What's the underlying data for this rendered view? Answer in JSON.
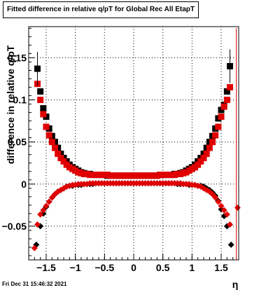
{
  "title": "Fitted difference in relative q/pT for Global Rec All EtapT",
  "footer": "Fri Dec 31 15:46:32 2021",
  "chart_data": {
    "type": "scatter",
    "title": "Fitted difference in relative q/pT for Global Rec All EtapT",
    "xlabel": "η",
    "ylabel": "difference in relative q/pT",
    "xlim": [
      -1.8,
      1.8
    ],
    "ylim": [
      -0.09,
      0.187
    ],
    "grid": true,
    "x_ticks": [
      -1.5,
      -1,
      -0.5,
      0,
      0.5,
      1,
      1.5
    ],
    "x_tick_labels": [
      "−1.5",
      "−1",
      "−0.5",
      "0",
      "0.5",
      "1",
      "1.5"
    ],
    "y_ticks": [
      -0.05,
      0,
      0.05,
      0.1,
      0.15
    ],
    "y_tick_labels": [
      "−0.05",
      "0",
      "0.05",
      "0.1",
      "0.15"
    ],
    "series": [
      {
        "marker": "square",
        "color": "#000000",
        "x": [
          -1.65,
          -1.6,
          -1.55,
          -1.5,
          -1.45,
          -1.4,
          -1.35,
          -1.3,
          -1.25,
          -1.2,
          -1.15,
          -1.1,
          -1.05,
          -1.0,
          -0.95,
          -0.9,
          -0.85,
          -0.8,
          -0.75,
          -0.7,
          -0.65,
          -0.6,
          -0.55,
          -0.5,
          -0.45,
          -0.4,
          -0.35,
          -0.3,
          -0.25,
          -0.2,
          -0.15,
          -0.1,
          -0.05,
          0.0,
          0.05,
          0.1,
          0.15,
          0.2,
          0.25,
          0.3,
          0.35,
          0.4,
          0.45,
          0.5,
          0.55,
          0.6,
          0.65,
          0.7,
          0.75,
          0.8,
          0.85,
          0.9,
          0.95,
          1.0,
          1.05,
          1.1,
          1.15,
          1.2,
          1.25,
          1.3,
          1.35,
          1.4,
          1.45,
          1.5,
          1.55,
          1.6,
          1.65
        ],
        "y": [
          0.137,
          0.11,
          0.09,
          0.08,
          0.066,
          0.057,
          0.05,
          0.043,
          0.036,
          0.031,
          0.027,
          0.023,
          0.02,
          0.018,
          0.016,
          0.014,
          0.013,
          0.012,
          0.012,
          0.011,
          0.011,
          0.011,
          0.011,
          0.011,
          0.01,
          0.01,
          0.01,
          0.01,
          0.01,
          0.01,
          0.01,
          0.01,
          0.01,
          0.01,
          0.01,
          0.01,
          0.01,
          0.01,
          0.01,
          0.01,
          0.01,
          0.01,
          0.011,
          0.011,
          0.011,
          0.011,
          0.011,
          0.012,
          0.012,
          0.013,
          0.014,
          0.016,
          0.018,
          0.02,
          0.023,
          0.027,
          0.031,
          0.036,
          0.043,
          0.05,
          0.057,
          0.066,
          0.078,
          0.088,
          0.094,
          0.11,
          0.14
        ]
      },
      {
        "marker": "square",
        "color": "#e00000",
        "x": [
          -1.65,
          -1.6,
          -1.55,
          -1.5,
          -1.45,
          -1.4,
          -1.35,
          -1.3,
          -1.25,
          -1.2,
          -1.15,
          -1.1,
          -1.05,
          -1.0,
          -0.95,
          -0.9,
          -0.85,
          -0.8,
          -0.75,
          -0.7,
          -0.65,
          -0.6,
          -0.55,
          -0.5,
          -0.45,
          -0.4,
          -0.35,
          -0.3,
          -0.25,
          -0.2,
          -0.15,
          -0.1,
          -0.05,
          0.0,
          0.05,
          0.1,
          0.15,
          0.2,
          0.25,
          0.3,
          0.35,
          0.4,
          0.45,
          0.5,
          0.55,
          0.6,
          0.65,
          0.7,
          0.75,
          0.8,
          0.85,
          0.9,
          0.95,
          1.0,
          1.05,
          1.1,
          1.15,
          1.2,
          1.25,
          1.3,
          1.35,
          1.4,
          1.45,
          1.5,
          1.55,
          1.6,
          1.65
        ],
        "y": [
          0.119,
          0.1,
          0.083,
          0.068,
          0.058,
          0.05,
          0.043,
          0.036,
          0.031,
          0.027,
          0.023,
          0.02,
          0.018,
          0.016,
          0.014,
          0.013,
          0.012,
          0.012,
          0.011,
          0.011,
          0.011,
          0.011,
          0.011,
          0.011,
          0.011,
          0.01,
          0.01,
          0.01,
          0.01,
          0.01,
          0.01,
          0.01,
          0.01,
          0.01,
          0.01,
          0.01,
          0.01,
          0.01,
          0.01,
          0.01,
          0.01,
          0.01,
          0.011,
          0.011,
          0.011,
          0.011,
          0.011,
          0.011,
          0.012,
          0.012,
          0.013,
          0.014,
          0.016,
          0.018,
          0.02,
          0.023,
          0.027,
          0.031,
          0.036,
          0.043,
          0.05,
          0.058,
          0.068,
          0.08,
          0.092,
          0.1,
          0.115
        ]
      },
      {
        "marker": "diamond",
        "color": "#000000",
        "x": [
          -1.67,
          -1.6,
          -1.55,
          -1.5,
          -1.45,
          -1.4,
          -1.35,
          -1.3,
          -1.25,
          -1.2,
          -1.15,
          -1.1,
          -1.05,
          -1.0,
          -0.95,
          -0.9,
          -0.85,
          -0.8,
          -0.75,
          -0.7,
          -0.65,
          -0.6,
          -0.55,
          -0.5,
          -0.45,
          -0.4,
          -0.35,
          -0.3,
          -0.25,
          -0.2,
          -0.15,
          -0.1,
          -0.05,
          0.0,
          0.05,
          0.1,
          0.15,
          0.2,
          0.25,
          0.3,
          0.35,
          0.4,
          0.45,
          0.5,
          0.55,
          0.6,
          0.65,
          0.7,
          0.75,
          0.8,
          0.85,
          0.9,
          0.95,
          1.0,
          1.05,
          1.1,
          1.15,
          1.2,
          1.25,
          1.3,
          1.35,
          1.4,
          1.45,
          1.5,
          1.55,
          1.6,
          1.67
        ],
        "y": [
          -0.072,
          -0.05,
          -0.035,
          -0.027,
          -0.021,
          -0.016,
          -0.012,
          -0.009,
          -0.007,
          -0.005,
          -0.003,
          -0.002,
          -0.002,
          -0.001,
          -0.001,
          -0.001,
          0.0,
          0.0,
          0.0,
          0.0,
          0.001,
          0.001,
          0.001,
          0.001,
          0.001,
          0.001,
          0.001,
          0.001,
          0.001,
          0.001,
          0.001,
          0.001,
          0.001,
          0.001,
          0.001,
          0.001,
          0.001,
          0.001,
          0.001,
          0.001,
          0.001,
          0.001,
          0.001,
          0.001,
          0.001,
          0.001,
          0.001,
          0.001,
          0.0,
          0.0,
          0.0,
          0.0,
          -0.001,
          -0.001,
          -0.001,
          -0.002,
          -0.002,
          -0.003,
          -0.005,
          -0.007,
          -0.01,
          -0.014,
          -0.02,
          -0.03,
          -0.038,
          -0.05,
          -0.072
        ]
      },
      {
        "marker": "diamond",
        "color": "#e00000",
        "x": [
          -1.7,
          -1.65,
          -1.6,
          -1.55,
          -1.5,
          -1.45,
          -1.4,
          -1.35,
          -1.3,
          -1.25,
          -1.2,
          -1.15,
          -1.1,
          -1.05,
          -1.0,
          -0.95,
          -0.9,
          -0.85,
          -0.8,
          -0.75,
          -0.7,
          -0.65,
          -0.6,
          -0.55,
          -0.5,
          -0.45,
          -0.4,
          -0.35,
          -0.3,
          -0.25,
          -0.2,
          -0.15,
          -0.1,
          -0.05,
          0.0,
          0.05,
          0.1,
          0.15,
          0.2,
          0.25,
          0.3,
          0.35,
          0.4,
          0.45,
          0.5,
          0.55,
          0.6,
          0.65,
          0.7,
          0.75,
          0.8,
          0.85,
          0.9,
          0.95,
          1.0,
          1.05,
          1.1,
          1.15,
          1.2,
          1.25,
          1.3,
          1.35,
          1.4,
          1.45,
          1.5,
          1.55,
          1.6,
          1.65,
          1.78
        ],
        "y": [
          -0.076,
          -0.048,
          -0.036,
          -0.031,
          -0.026,
          -0.021,
          -0.016,
          -0.012,
          -0.009,
          -0.007,
          -0.005,
          -0.003,
          -0.002,
          -0.001,
          -0.001,
          0.0,
          0.0,
          0.0,
          0.0,
          0.001,
          0.001,
          0.001,
          0.001,
          0.001,
          0.001,
          0.001,
          0.001,
          0.001,
          0.001,
          0.001,
          0.001,
          0.001,
          0.001,
          0.001,
          0.001,
          0.001,
          0.001,
          0.001,
          0.001,
          0.001,
          0.001,
          0.001,
          0.001,
          0.001,
          0.001,
          0.001,
          0.001,
          0.001,
          0.001,
          0.001,
          0.001,
          0.0,
          0.0,
          0.0,
          -0.001,
          -0.001,
          -0.002,
          -0.003,
          -0.005,
          -0.007,
          -0.009,
          -0.012,
          -0.016,
          -0.021,
          -0.026,
          -0.031,
          -0.036,
          -0.048,
          -0.028
        ]
      }
    ]
  }
}
